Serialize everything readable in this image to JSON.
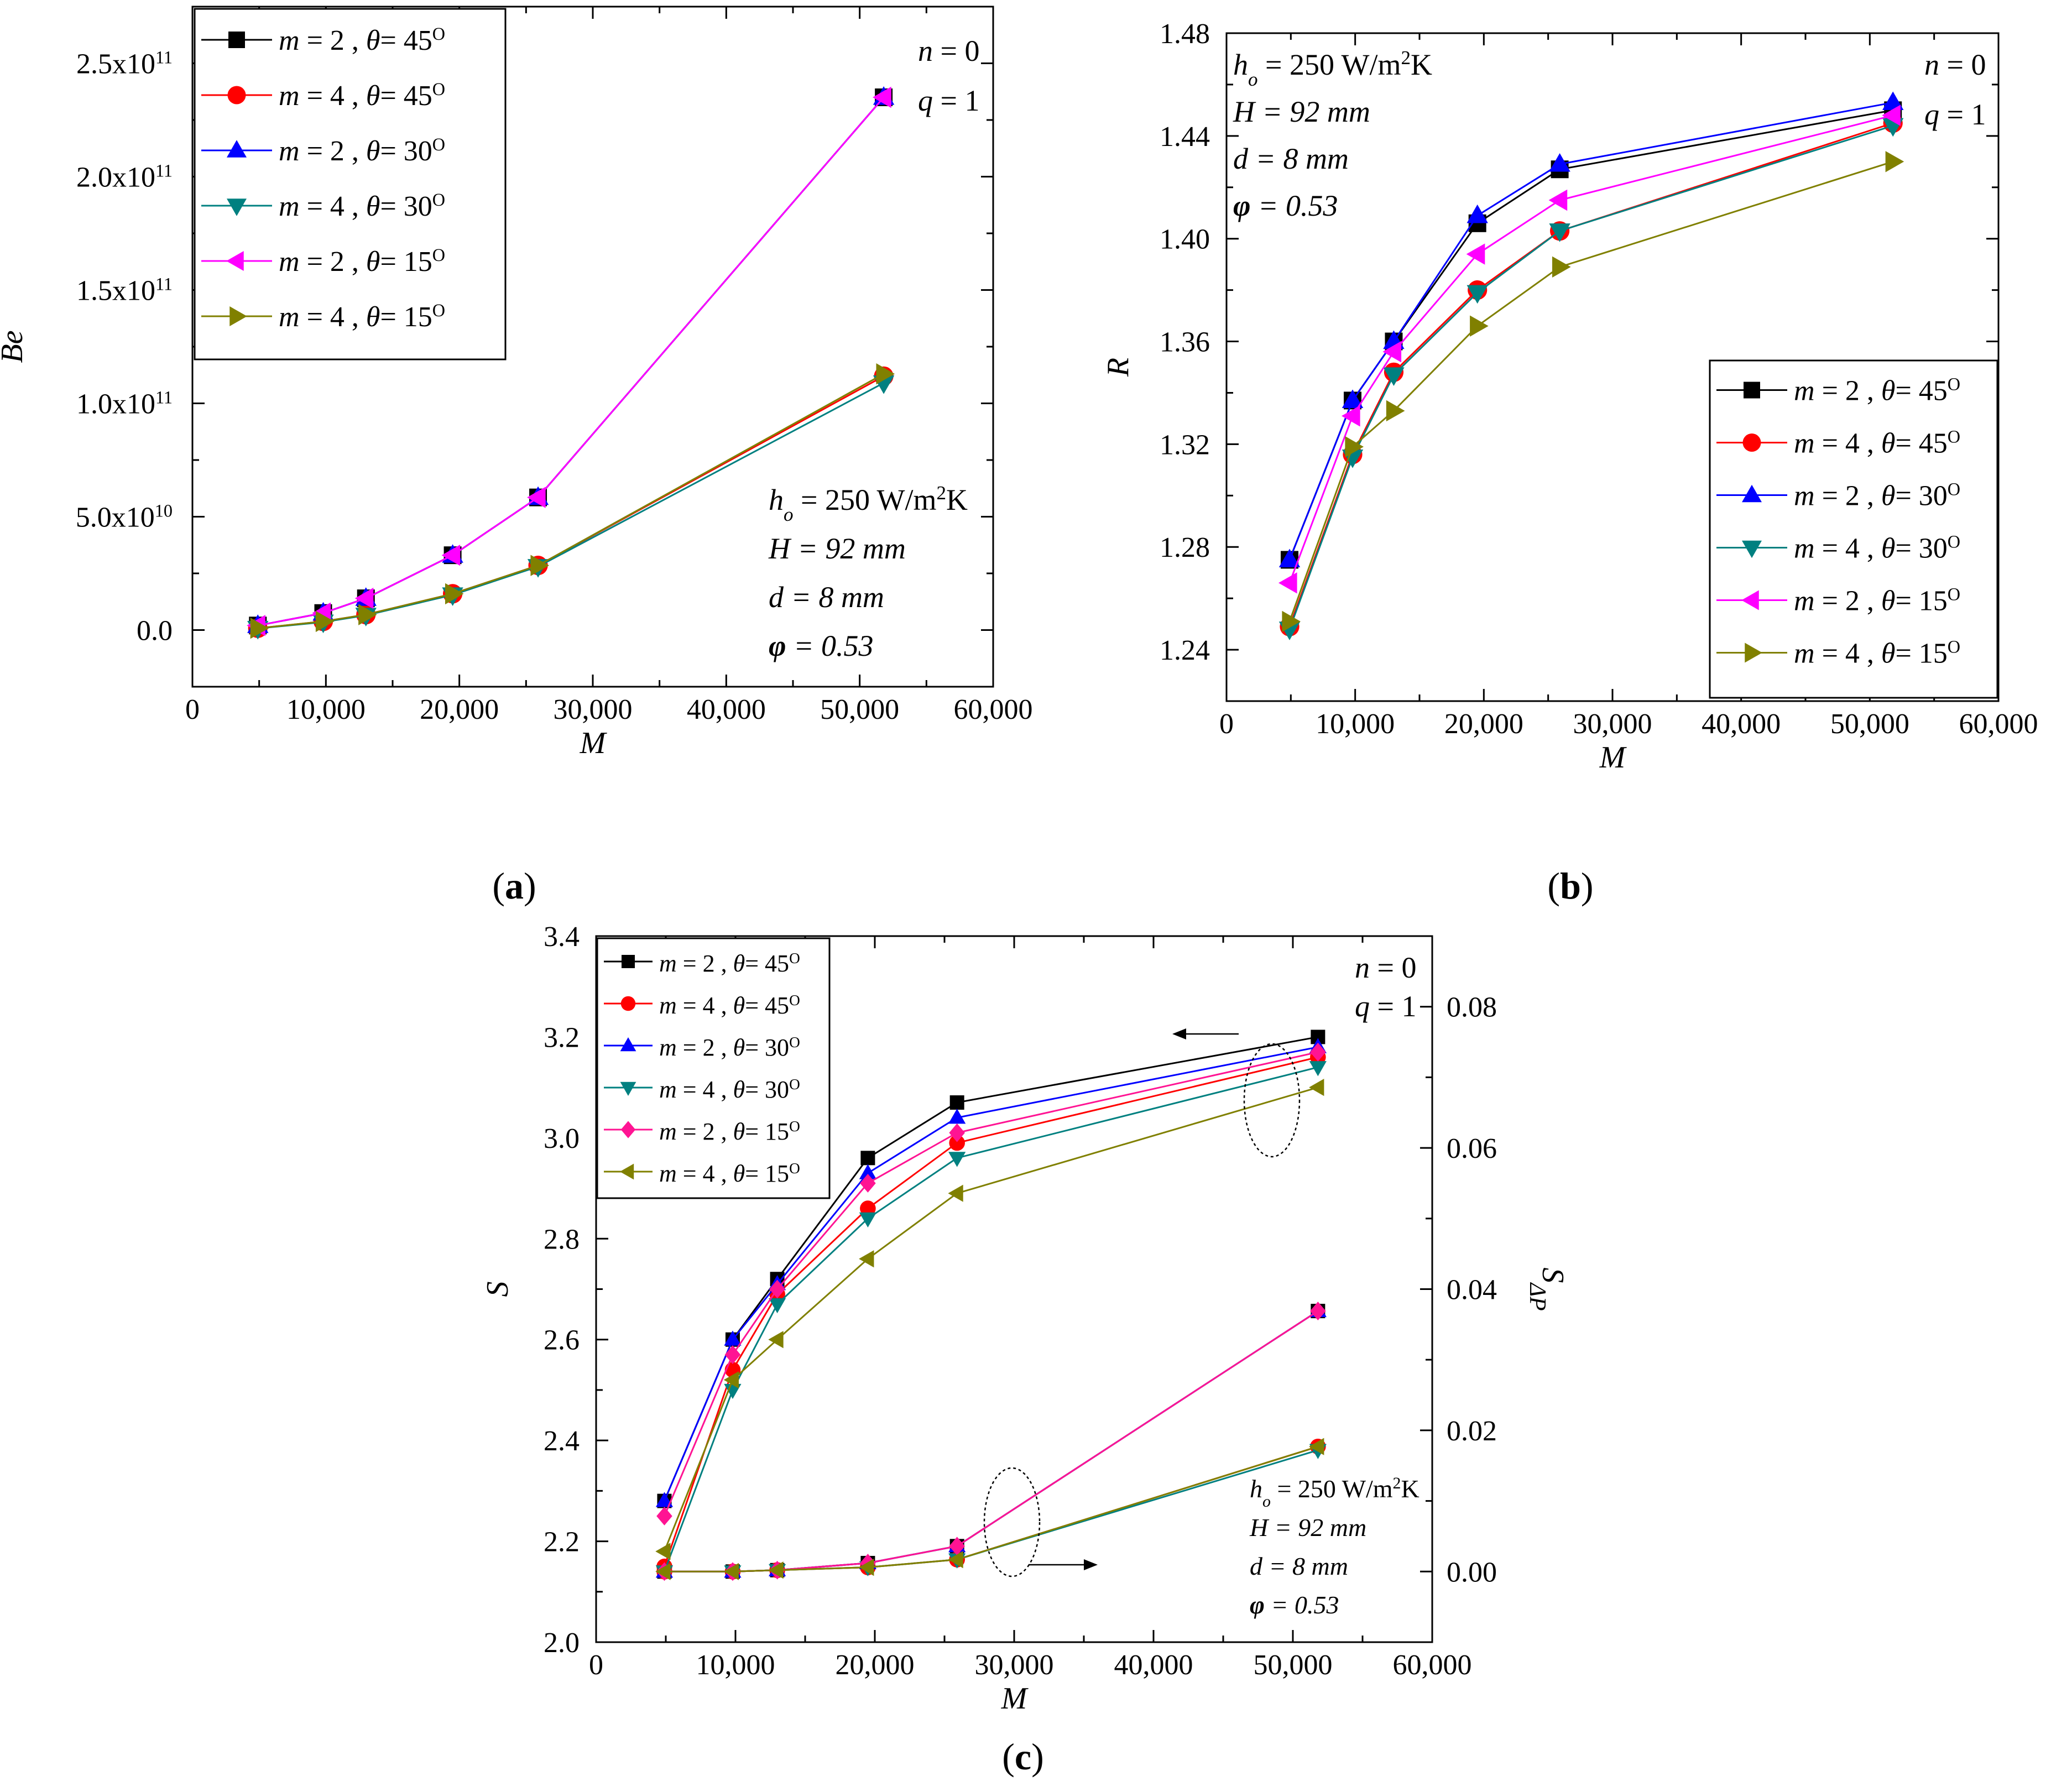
{
  "chart_data": [
    {
      "type": "line",
      "panel_label": "(a)",
      "xlabel": "M",
      "ylabel": "Be",
      "xlim": [
        0,
        60000
      ],
      "ylim": [
        -25000000000.0,
        275000000000.0
      ],
      "xticks": [
        0,
        10000,
        20000,
        30000,
        40000,
        50000,
        60000
      ],
      "xtick_labels": [
        "0",
        "10,000",
        "20,000",
        "30,000",
        "40,000",
        "50,000",
        "60,000"
      ],
      "yticks": [
        0,
        50000000000.0,
        100000000000.0,
        150000000000.0,
        200000000000.0,
        250000000000.0
      ],
      "ytick_labels": [
        {
          "mantissa": "0.0",
          "exp": ""
        },
        {
          "mantissa": "5.0x10",
          "exp": "10"
        },
        {
          "mantissa": "1.0x10",
          "exp": "11"
        },
        {
          "mantissa": "1.5x10",
          "exp": "11"
        },
        {
          "mantissa": "2.0x10",
          "exp": "11"
        },
        {
          "mantissa": "2.5x10",
          "exp": "11"
        }
      ],
      "legend_position": "top-left",
      "params_top_right": [
        "n = 0",
        "q = 1"
      ],
      "params_block": [
        "h_o = 250 W/m²K",
        "H = 92 mm",
        "d = 8 mm",
        "φ = 0.53"
      ],
      "x": [
        4900,
        9800,
        13000,
        19500,
        25900,
        51800
      ],
      "series": [
        {
          "name": "m = 2 , θ = 45°",
          "m": "2",
          "theta": "45",
          "color": "#000000",
          "marker": "square",
          "values": [
            2000000000.0,
            7500000000.0,
            14000000000.0,
            33000000000.0,
            58500000000.0,
            235000000000.0
          ]
        },
        {
          "name": "m = 4 , θ = 45°",
          "m": "4",
          "theta": "45",
          "color": "#ff0000",
          "marker": "circle",
          "values": [
            800000000.0,
            3800000000.0,
            6800000000.0,
            16000000000.0,
            28500000000.0,
            112000000000.0
          ]
        },
        {
          "name": "m = 2 , θ = 30°",
          "m": "2",
          "theta": "30",
          "color": "#0000ff",
          "marker": "tri-up",
          "values": [
            2000000000.0,
            7500000000.0,
            14000000000.0,
            33000000000.0,
            58500000000.0,
            235000000000.0
          ]
        },
        {
          "name": "m = 4 , θ = 30°",
          "m": "4",
          "theta": "30",
          "color": "#008080",
          "marker": "tri-down",
          "values": [
            700000000.0,
            3500000000.0,
            6500000000.0,
            15500000000.0,
            28000000000.0,
            109000000000.0
          ]
        },
        {
          "name": "m = 2 , θ = 15°",
          "m": "2",
          "theta": "15",
          "color": "#ff00ff",
          "marker": "tri-left",
          "values": [
            2000000000.0,
            7500000000.0,
            14000000000.0,
            33000000000.0,
            58500000000.0,
            235000000000.0
          ]
        },
        {
          "name": "m = 4 , θ = 15°",
          "m": "4",
          "theta": "15",
          "color": "#808000",
          "marker": "tri-right",
          "values": [
            800000000.0,
            3800000000.0,
            6800000000.0,
            16000000000.0,
            28500000000.0,
            113000000000.0
          ]
        }
      ]
    },
    {
      "type": "line",
      "panel_label": "(b)",
      "xlabel": "M",
      "ylabel": "R",
      "xlim": [
        0,
        60000
      ],
      "ylim": [
        1.22,
        1.48
      ],
      "xticks": [
        0,
        10000,
        20000,
        30000,
        40000,
        50000,
        60000
      ],
      "xtick_labels": [
        "0",
        "10,000",
        "20,000",
        "30,000",
        "40,000",
        "50,000",
        "60,000"
      ],
      "yticks": [
        1.24,
        1.28,
        1.32,
        1.36,
        1.4,
        1.44,
        1.48
      ],
      "ytick_labels": [
        "1.24",
        "1.28",
        "1.32",
        "1.36",
        "1.40",
        "1.44",
        "1.48"
      ],
      "legend_position": "bottom-right",
      "params_top_right": [
        "n = 0",
        "q = 1"
      ],
      "params_block": [
        "h_o = 250 W/m²K",
        "H = 92 mm",
        "d = 8 mm",
        "φ = 0.53"
      ],
      "x": [
        4900,
        9800,
        13000,
        19500,
        25900,
        51800
      ],
      "series": [
        {
          "name": "m = 2 , θ = 45°",
          "m": "2",
          "theta": "45",
          "color": "#000000",
          "marker": "square",
          "values": [
            1.275,
            1.337,
            1.36,
            1.406,
            1.427,
            1.45
          ]
        },
        {
          "name": "m = 4 , θ = 45°",
          "m": "4",
          "theta": "45",
          "color": "#ff0000",
          "marker": "circle",
          "values": [
            1.249,
            1.316,
            1.348,
            1.38,
            1.403,
            1.445
          ]
        },
        {
          "name": "m = 2 , θ = 30°",
          "m": "2",
          "theta": "30",
          "color": "#0000ff",
          "marker": "tri-up",
          "values": [
            1.275,
            1.337,
            1.36,
            1.409,
            1.429,
            1.453
          ]
        },
        {
          "name": "m = 4 , θ = 30°",
          "m": "4",
          "theta": "30",
          "color": "#008080",
          "marker": "tri-down",
          "values": [
            1.248,
            1.315,
            1.347,
            1.379,
            1.403,
            1.444
          ]
        },
        {
          "name": "m = 2 , θ = 15°",
          "m": "2",
          "theta": "15",
          "color": "#ff00ff",
          "marker": "tri-left",
          "values": [
            1.266,
            1.331,
            1.356,
            1.394,
            1.415,
            1.448
          ]
        },
        {
          "name": "m = 4 , θ = 15°",
          "m": "4",
          "theta": "15",
          "color": "#808000",
          "marker": "tri-right",
          "values": [
            1.251,
            1.319,
            1.333,
            1.366,
            1.389,
            1.43
          ]
        }
      ]
    },
    {
      "type": "line",
      "panel_label": "(c)",
      "xlabel": "M",
      "ylabel": "S",
      "ylabel_right": "S_ΔP",
      "xlim": [
        0,
        60000
      ],
      "ylim": [
        2.0,
        3.4
      ],
      "ylim_right": [
        -0.01,
        0.09
      ],
      "xticks": [
        0,
        10000,
        20000,
        30000,
        40000,
        50000,
        60000
      ],
      "xtick_labels": [
        "0",
        "10,000",
        "20,000",
        "30,000",
        "40,000",
        "50,000",
        "60,000"
      ],
      "yticks": [
        2.0,
        2.2,
        2.4,
        2.6,
        2.8,
        3.0,
        3.2,
        3.4
      ],
      "ytick_labels": [
        "2.0",
        "2.2",
        "2.4",
        "2.6",
        "2.8",
        "3.0",
        "3.2",
        "3.4"
      ],
      "yticks_right": [
        0.0,
        0.02,
        0.04,
        0.06,
        0.08
      ],
      "ytick_labels_right": [
        "0.00",
        "0.02",
        "0.04",
        "0.06",
        "0.08"
      ],
      "legend_position": "top-left",
      "params_top_right": [
        "n = 0",
        "q = 1"
      ],
      "params_block": [
        "h_o = 250 W/m²K",
        "H = 92 mm",
        "d = 8 mm",
        "φ = 0.53"
      ],
      "x": [
        4900,
        9800,
        13000,
        19500,
        25900,
        51800
      ],
      "series": [
        {
          "name": "m = 2 , θ = 45°",
          "m": "2",
          "theta": "45",
          "color": "#000000",
          "marker": "square",
          "values": [
            2.28,
            2.6,
            2.72,
            2.96,
            3.07,
            3.2
          ],
          "values_right": [
            0.0,
            0.0,
            0.0002,
            0.0012,
            0.0036,
            0.0369
          ]
        },
        {
          "name": "m = 4 , θ = 45°",
          "m": "4",
          "theta": "45",
          "color": "#ff0000",
          "marker": "circle",
          "values": [
            2.15,
            2.54,
            2.69,
            2.86,
            2.99,
            3.16
          ],
          "values_right": [
            0.0,
            0.0,
            0.0002,
            0.0006,
            0.0017,
            0.0177
          ]
        },
        {
          "name": "m = 2 , θ = 30°",
          "m": "2",
          "theta": "30",
          "color": "#0000ff",
          "marker": "tri-up",
          "values": [
            2.28,
            2.6,
            2.71,
            2.93,
            3.04,
            3.18
          ],
          "values_right": [
            0.0,
            0.0,
            0.0002,
            0.0012,
            0.0036,
            0.0369
          ]
        },
        {
          "name": "m = 4 , θ = 30°",
          "m": "4",
          "theta": "30",
          "color": "#008080",
          "marker": "tri-down",
          "values": [
            2.14,
            2.5,
            2.67,
            2.84,
            2.96,
            3.14
          ],
          "values_right": [
            0.0,
            0.0,
            0.0002,
            0.0006,
            0.0017,
            0.0172
          ]
        },
        {
          "name": "m = 2 , θ = 15°",
          "m": "2",
          "theta": "15",
          "color": "#ff1493",
          "marker": "diamond",
          "values": [
            2.25,
            2.57,
            2.7,
            2.91,
            3.01,
            3.17
          ],
          "values_right": [
            0.0,
            0.0,
            0.0002,
            0.0012,
            0.0036,
            0.0369
          ]
        },
        {
          "name": "m = 4 , θ = 15°",
          "m": "4",
          "theta": "15",
          "color": "#808000",
          "marker": "tri-left",
          "values": [
            2.18,
            2.52,
            2.6,
            2.76,
            2.89,
            3.1
          ],
          "values_right": [
            0.0,
            0.0,
            0.0002,
            0.0006,
            0.0017,
            0.0177
          ]
        }
      ]
    }
  ]
}
